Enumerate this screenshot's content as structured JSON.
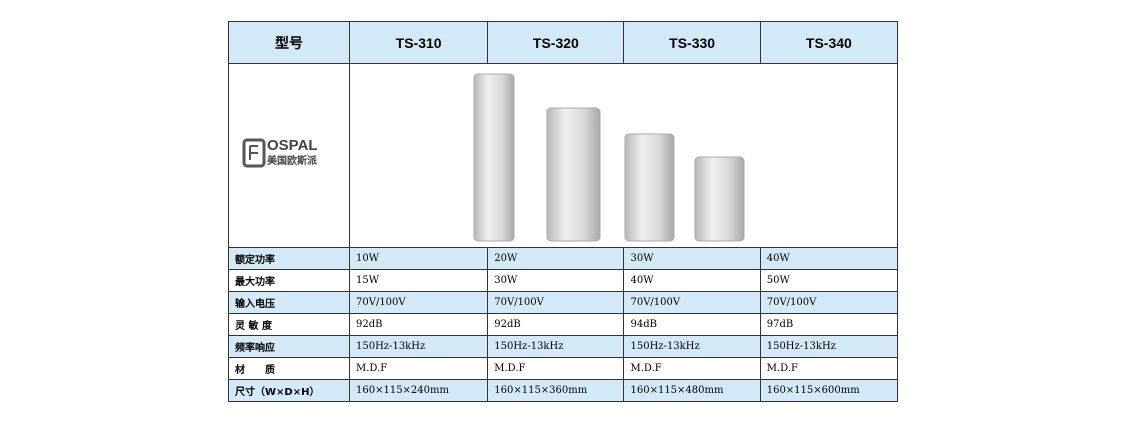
{
  "table": {
    "header": [
      "型号",
      "TS-310",
      "TS-320",
      "TS-330",
      "TS-340"
    ],
    "logo": {
      "brand": "OSPAL",
      "subtitle": "美国欧斯派"
    },
    "rows": [
      [
        "额定功率",
        "10W",
        "20W",
        "30W",
        "40W"
      ],
      [
        "最大功率",
        "15W",
        "30W",
        "40W",
        "50W"
      ],
      [
        "输入电压",
        "70V/100V",
        "70V/100V",
        "70V/100V",
        "70V/100V"
      ],
      [
        "灵 敏 度",
        "92dB",
        "92dB",
        "94dB",
        "97dB"
      ],
      [
        "频率响应",
        "150Hz-13kHz",
        "150Hz-13kHz",
        "150Hz-13kHz",
        "150Hz-13kHz"
      ],
      [
        "材　　质",
        "M.D.F",
        "M.D.F",
        "M.D.F",
        "M.D.F"
      ],
      [
        "尺寸（W×D×H）",
        "160×115×240mm",
        "160×115×360mm",
        "160×115×480mm",
        "160×115×600mm"
      ]
    ]
  }
}
